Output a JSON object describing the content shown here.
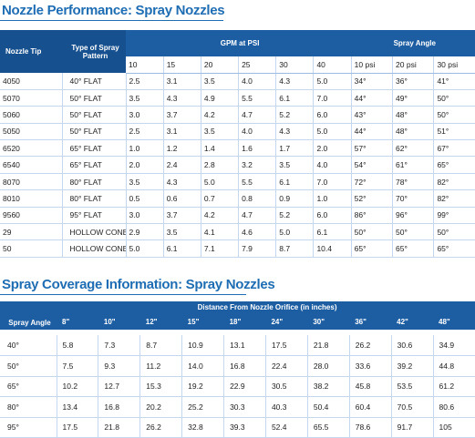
{
  "performance": {
    "title": "Nozzle Performance: Spray Nozzles",
    "header": [
      "Nozzle Tip",
      "Type of Spray Pattern",
      "GPM at PSI",
      "Spray Angle"
    ],
    "gpm_psi": [
      "10",
      "15",
      "20",
      "25",
      "30",
      "40"
    ],
    "angle_psi": [
      "10 psi",
      "20 psi",
      "30 psi"
    ],
    "rows": [
      [
        "4050",
        "40° FLAT",
        "2.5",
        "3.1",
        "3.5",
        "4.0",
        "4.3",
        "5.0",
        "34°",
        "36°",
        "41°"
      ],
      [
        "5070",
        "50° FLAT",
        "3.5",
        "4.3",
        "4.9",
        "5.5",
        "6.1",
        "7.0",
        "44°",
        "49°",
        "50°"
      ],
      [
        "5060",
        "50° FLAT",
        "3.0",
        "3.7",
        "4.2",
        "4.7",
        "5.2",
        "6.0",
        "43°",
        "48°",
        "50°"
      ],
      [
        "5050",
        "50° FLAT",
        "2.5",
        "3.1",
        "3.5",
        "4.0",
        "4.3",
        "5.0",
        "44°",
        "48°",
        "51°"
      ],
      [
        "6520",
        "65° FLAT",
        "1.0",
        "1.2",
        "1.4",
        "1.6",
        "1.7",
        "2.0",
        "57°",
        "62°",
        "67°"
      ],
      [
        "6540",
        "65° FLAT",
        "2.0",
        "2.4",
        "2.8",
        "3.2",
        "3.5",
        "4.0",
        "54°",
        "61°",
        "65°"
      ],
      [
        "8070",
        "80° FLAT",
        "3.5",
        "4.3",
        "5.0",
        "5.5",
        "6.1",
        "7.0",
        "72°",
        "78°",
        "82°"
      ],
      [
        "8010",
        "80° FLAT",
        "0.5",
        "0.6",
        "0.7",
        "0.8",
        "0.9",
        "1.0",
        "52°",
        "70°",
        "82°"
      ],
      [
        "9560",
        "95° FLAT",
        "3.0",
        "3.7",
        "4.2",
        "4.7",
        "5.2",
        "6.0",
        "86°",
        "96°",
        "99°"
      ],
      [
        "29",
        "HOLLOW CONE",
        "2.9",
        "3.5",
        "4.1",
        "4.6",
        "5.0",
        "6.1",
        "50°",
        "50°",
        "50°"
      ],
      [
        "50",
        "HOLLOW CONE",
        "5.0",
        "6.1",
        "7.1",
        "7.9",
        "8.7",
        "10.4",
        "65°",
        "65°",
        "65°"
      ]
    ]
  },
  "coverage": {
    "title": "Spray Coverage Information: Spray Nozzles",
    "header": [
      "Spray Angle",
      "Distance From Nozzle Orifice (in inches)"
    ],
    "distances": [
      "8\"",
      "10\"",
      "12\"",
      "15\"",
      "18\"",
      "24\"",
      "30\"",
      "36\"",
      "42\"",
      "48\""
    ],
    "rows": [
      [
        "40°",
        "5.8",
        "7.3",
        "8.7",
        "10.9",
        "13.1",
        "17.5",
        "21.8",
        "26.2",
        "30.6",
        "34.9"
      ],
      [
        "50°",
        "7.5",
        "9.3",
        "11.2",
        "14.0",
        "16.8",
        "22.4",
        "28.0",
        "33.6",
        "39.2",
        "44.8"
      ],
      [
        "65°",
        "10.2",
        "12.7",
        "15.3",
        "19.2",
        "22.9",
        "30.5",
        "38.2",
        "45.8",
        "53.5",
        "61.2"
      ],
      [
        "80°",
        "13.4",
        "16.8",
        "20.2",
        "25.2",
        "30.3",
        "40.3",
        "50.4",
        "60.4",
        "70.5",
        "80.6"
      ],
      [
        "95°",
        "17.5",
        "21.8",
        "26.2",
        "32.8",
        "39.3",
        "52.4",
        "65.5",
        "78.6",
        "91.7",
        "105"
      ]
    ]
  }
}
